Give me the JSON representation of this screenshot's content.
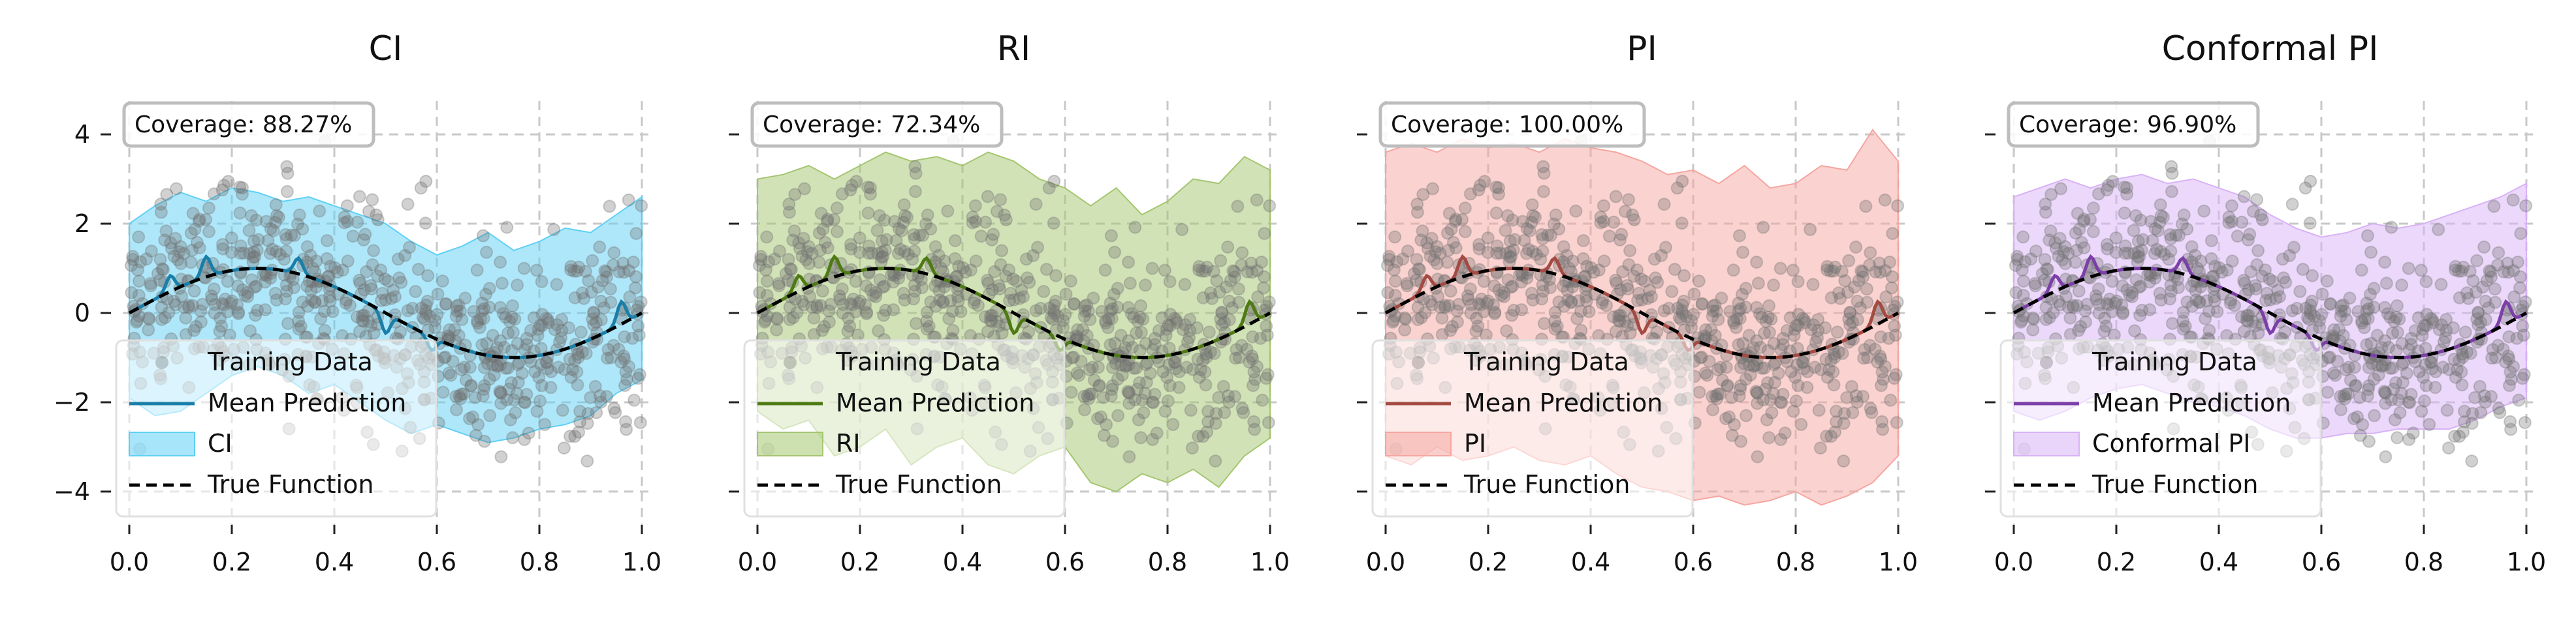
{
  "figure": {
    "layout": "1x4 subplots, shared y-axis"
  },
  "chart_data": [
    {
      "type": "scatter",
      "title": "CI",
      "band_label": "CI",
      "coverage_text": "Coverage: 88.27%",
      "color": "#1a7fa8",
      "fill_color": "#5fd0f5",
      "xlim": [
        0.0,
        1.0
      ],
      "ylim": [
        -4.6,
        4.6
      ],
      "xticks": [
        "0.0",
        "0.2",
        "0.4",
        "0.6",
        "0.8",
        "1.0"
      ],
      "yticks": [
        "4",
        "2",
        "0",
        "−2",
        "−4"
      ],
      "grid": true,
      "legend": [
        "Training Data",
        "Mean Prediction",
        "CI",
        "True Function"
      ],
      "legend_loc": "lower-left",
      "band_x": [
        0.0,
        0.05,
        0.1,
        0.15,
        0.2,
        0.25,
        0.3,
        0.35,
        0.4,
        0.45,
        0.5,
        0.55,
        0.6,
        0.65,
        0.7,
        0.75,
        0.8,
        0.85,
        0.9,
        0.95,
        1.0
      ],
      "band_upper": [
        2.0,
        2.4,
        2.7,
        2.5,
        2.8,
        2.7,
        2.5,
        2.6,
        2.4,
        2.2,
        2.0,
        1.6,
        1.3,
        1.5,
        1.8,
        1.4,
        1.6,
        1.9,
        1.8,
        2.2,
        2.6
      ],
      "band_lower": [
        -1.9,
        -2.3,
        -2.2,
        -1.8,
        -1.4,
        -1.2,
        -1.4,
        -1.8,
        -1.6,
        -2.0,
        -2.4,
        -2.7,
        -2.5,
        -2.7,
        -2.9,
        -2.8,
        -2.6,
        -2.5,
        -2.3,
        -1.8,
        -1.5
      ]
    },
    {
      "type": "scatter",
      "title": "RI",
      "band_label": "RI",
      "coverage_text": "Coverage: 72.34%",
      "color": "#4e7a14",
      "fill_color": "#a4c66f",
      "xlim": [
        0.0,
        1.0
      ],
      "ylim": [
        -4.6,
        4.6
      ],
      "xticks": [
        "0.0",
        "0.2",
        "0.4",
        "0.6",
        "0.8",
        "1.0"
      ],
      "yticks": [
        "4",
        "2",
        "0",
        "−2",
        "−4"
      ],
      "grid": true,
      "legend": [
        "Training Data",
        "Mean Prediction",
        "RI",
        "True Function"
      ],
      "legend_loc": "lower-left",
      "band_x": [
        0.0,
        0.05,
        0.1,
        0.15,
        0.2,
        0.25,
        0.3,
        0.35,
        0.4,
        0.45,
        0.5,
        0.55,
        0.6,
        0.65,
        0.7,
        0.75,
        0.8,
        0.85,
        0.9,
        0.95,
        1.0
      ],
      "band_upper": [
        3.0,
        3.1,
        3.3,
        3.0,
        3.3,
        3.6,
        3.4,
        3.5,
        3.3,
        3.6,
        3.4,
        3.0,
        2.8,
        2.4,
        2.8,
        2.2,
        2.5,
        3.0,
        2.9,
        3.5,
        3.2
      ],
      "band_lower": [
        -2.2,
        -2.6,
        -2.4,
        -3.2,
        -3.0,
        -2.6,
        -3.4,
        -3.0,
        -2.8,
        -3.4,
        -3.6,
        -3.2,
        -3.0,
        -3.8,
        -4.0,
        -3.6,
        -3.8,
        -3.5,
        -3.9,
        -3.2,
        -2.8
      ]
    },
    {
      "type": "scatter",
      "title": "PI",
      "band_label": "PI",
      "coverage_text": "Coverage: 100.00%",
      "color": "#a34b43",
      "fill_color": "#f6a6a0",
      "xlim": [
        0.0,
        1.0
      ],
      "ylim": [
        -4.6,
        4.6
      ],
      "xticks": [
        "0.0",
        "0.2",
        "0.4",
        "0.6",
        "0.8",
        "1.0"
      ],
      "yticks": [
        "4",
        "2",
        "0",
        "−2",
        "−4"
      ],
      "grid": true,
      "legend": [
        "Training Data",
        "Mean Prediction",
        "PI",
        "True Function"
      ],
      "legend_loc": "lower-left",
      "band_x": [
        0.0,
        0.05,
        0.1,
        0.15,
        0.2,
        0.25,
        0.3,
        0.35,
        0.4,
        0.45,
        0.5,
        0.55,
        0.6,
        0.65,
        0.7,
        0.75,
        0.8,
        0.85,
        0.9,
        0.95,
        1.0
      ],
      "band_upper": [
        3.6,
        3.8,
        3.6,
        3.9,
        3.7,
        3.8,
        3.6,
        3.9,
        3.7,
        3.6,
        3.4,
        3.1,
        3.2,
        2.9,
        3.3,
        2.8,
        2.9,
        3.3,
        3.2,
        4.1,
        3.4
      ],
      "band_lower": [
        -3.2,
        -3.4,
        -3.0,
        -3.3,
        -3.2,
        -3.0,
        -3.3,
        -3.4,
        -3.2,
        -3.6,
        -3.9,
        -4.0,
        -4.2,
        -4.1,
        -4.3,
        -4.2,
        -4.0,
        -4.3,
        -4.1,
        -3.8,
        -3.2
      ]
    },
    {
      "type": "scatter",
      "title": "Conformal PI",
      "band_label": "Conformal PI",
      "coverage_text": "Coverage: 96.90%",
      "color": "#7b3fa8",
      "fill_color": "#d8b2f6",
      "xlim": [
        0.0,
        1.0
      ],
      "ylim": [
        -4.6,
        4.6
      ],
      "xticks": [
        "0.0",
        "0.2",
        "0.4",
        "0.6",
        "0.8",
        "1.0"
      ],
      "yticks": [
        "4",
        "2",
        "0",
        "−2",
        "−4"
      ],
      "grid": true,
      "legend": [
        "Training Data",
        "Mean Prediction",
        "Conformal PI",
        "True Function"
      ],
      "legend_loc": "lower-left",
      "band_x": [
        0.0,
        0.05,
        0.1,
        0.15,
        0.2,
        0.25,
        0.3,
        0.35,
        0.4,
        0.45,
        0.5,
        0.55,
        0.6,
        0.65,
        0.7,
        0.75,
        0.8,
        0.85,
        0.9,
        0.95,
        1.0
      ],
      "band_upper": [
        2.6,
        2.8,
        3.0,
        2.8,
        3.0,
        3.1,
        2.9,
        3.0,
        2.8,
        2.6,
        2.2,
        1.9,
        1.7,
        1.8,
        2.0,
        1.9,
        2.0,
        2.2,
        2.4,
        2.6,
        2.9
      ],
      "band_lower": [
        -2.2,
        -2.4,
        -2.2,
        -1.9,
        -1.7,
        -1.6,
        -1.8,
        -2.0,
        -2.1,
        -2.3,
        -2.6,
        -2.8,
        -2.8,
        -2.7,
        -2.7,
        -2.6,
        -2.6,
        -2.6,
        -2.4,
        -2.1,
        -1.9
      ]
    }
  ]
}
